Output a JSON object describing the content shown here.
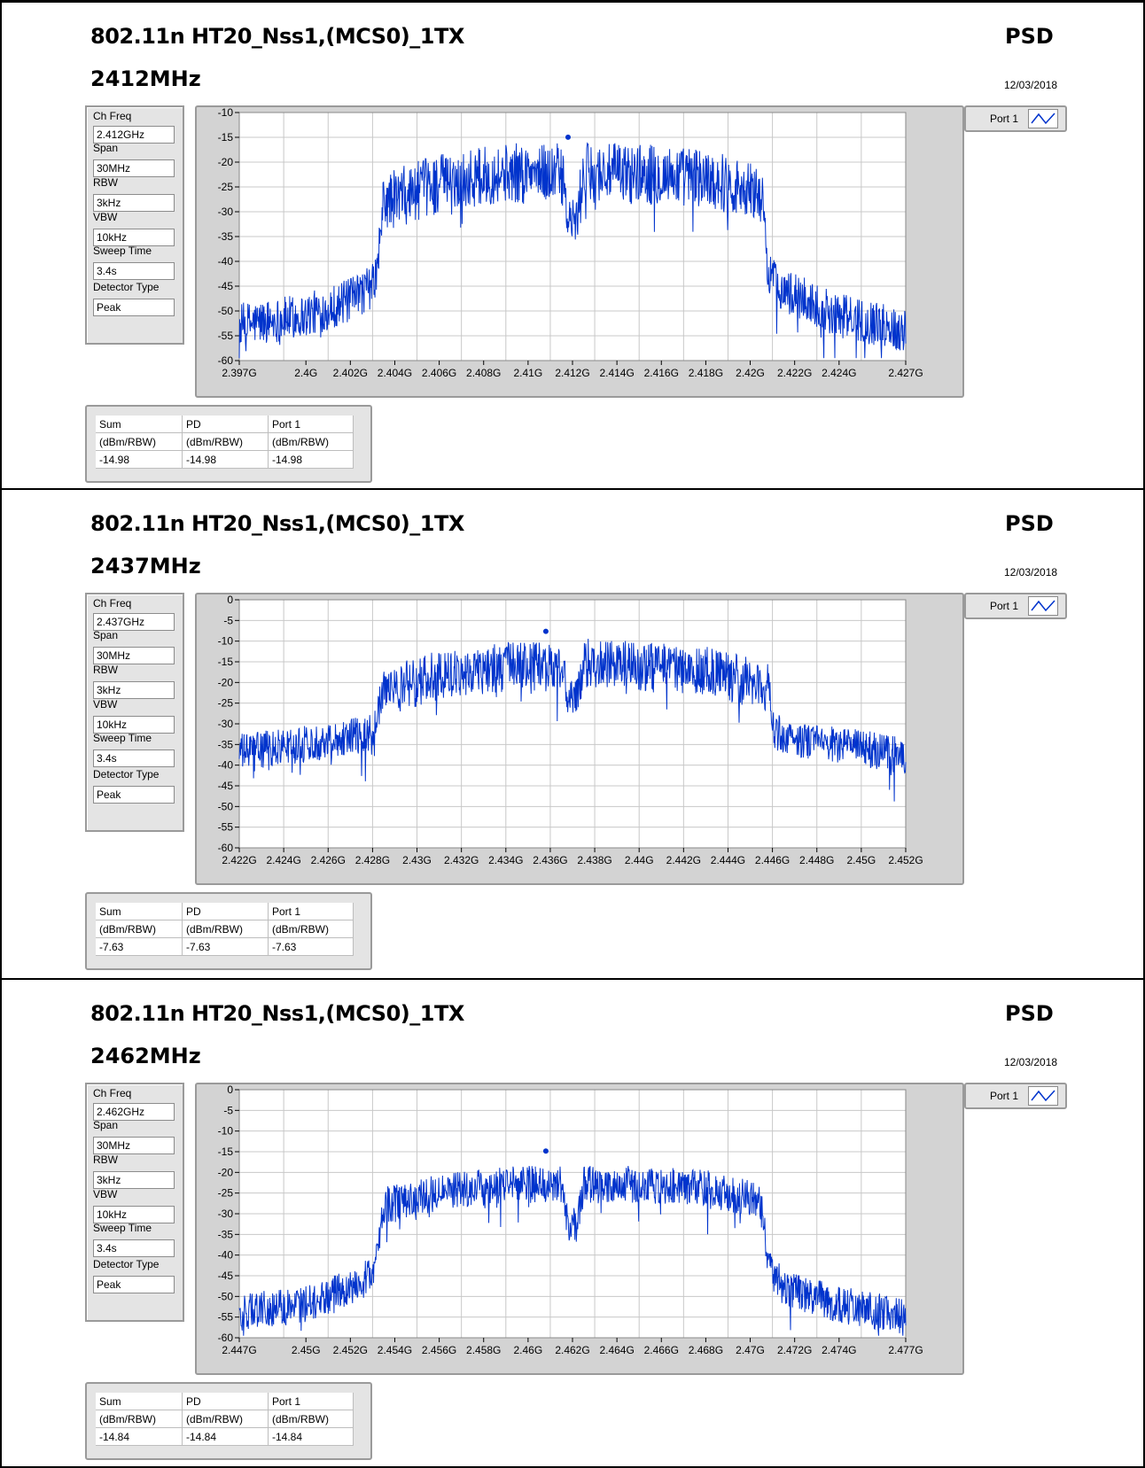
{
  "panels": [
    {
      "title": "802.11n HT20_Nss1,(MCS0)_1TX",
      "psd_label": "PSD",
      "freq_label": "2412MHz",
      "date": "12/03/2018",
      "params": {
        "ch_freq_label": "Ch Freq",
        "ch_freq": "2.412GHz",
        "span_label": "Span",
        "span": "30MHz",
        "rbw_label": "RBW",
        "rbw": "3kHz",
        "vbw_label": "VBW",
        "vbw": "10kHz",
        "sweep_label": "Sweep Time",
        "sweep": "3.4s",
        "detector_label": "Detector Type",
        "detector": "Peak"
      },
      "legend": "Port 1",
      "table": {
        "headers": [
          "Sum",
          "PD",
          "Port 1"
        ],
        "units": [
          "(dBm/RBW)",
          "(dBm/RBW)",
          "(dBm/RBW)"
        ],
        "values": [
          "-14.98",
          "-14.98",
          "-14.98"
        ]
      }
    },
    {
      "title": "802.11n HT20_Nss1,(MCS0)_1TX",
      "psd_label": "PSD",
      "freq_label": "2437MHz",
      "date": "12/03/2018",
      "params": {
        "ch_freq_label": "Ch Freq",
        "ch_freq": "2.437GHz",
        "span_label": "Span",
        "span": "30MHz",
        "rbw_label": "RBW",
        "rbw": "3kHz",
        "vbw_label": "VBW",
        "vbw": "10kHz",
        "sweep_label": "Sweep Time",
        "sweep": "3.4s",
        "detector_label": "Detector Type",
        "detector": "Peak"
      },
      "legend": "Port 1",
      "table": {
        "headers": [
          "Sum",
          "PD",
          "Port 1"
        ],
        "units": [
          "(dBm/RBW)",
          "(dBm/RBW)",
          "(dBm/RBW)"
        ],
        "values": [
          "-7.63",
          "-7.63",
          "-7.63"
        ]
      }
    },
    {
      "title": "802.11n HT20_Nss1,(MCS0)_1TX",
      "psd_label": "PSD",
      "freq_label": "2462MHz",
      "date": "12/03/2018",
      "params": {
        "ch_freq_label": "Ch Freq",
        "ch_freq": "2.462GHz",
        "span_label": "Span",
        "span": "30MHz",
        "rbw_label": "RBW",
        "rbw": "3kHz",
        "vbw_label": "VBW",
        "vbw": "10kHz",
        "sweep_label": "Sweep Time",
        "sweep": "3.4s",
        "detector_label": "Detector Type",
        "detector": "Peak"
      },
      "legend": "Port 1",
      "table": {
        "headers": [
          "Sum",
          "PD",
          "Port 1"
        ],
        "units": [
          "(dBm/RBW)",
          "(dBm/RBW)",
          "(dBm/RBW)"
        ],
        "values": [
          "-14.84",
          "-14.84",
          "-14.84"
        ]
      }
    }
  ],
  "colors": {
    "trace": "#0033cc",
    "grid": "#c8c8c8",
    "plot_bg": "#ffffff",
    "frame_bg": "#d3d3d3"
  },
  "chart_data": [
    {
      "type": "line",
      "series_name": "Port 1",
      "xlim": [
        2.397,
        2.427
      ],
      "ylim": [
        -60,
        -10
      ],
      "x_ticks": [
        2.397,
        2.4,
        2.402,
        2.404,
        2.406,
        2.408,
        2.41,
        2.412,
        2.414,
        2.416,
        2.418,
        2.42,
        2.422,
        2.424,
        2.427
      ],
      "x_tick_labels": [
        "2.397G",
        "2.4G",
        "2.402G",
        "2.404G",
        "2.406G",
        "2.408G",
        "2.41G",
        "2.412G",
        "2.414G",
        "2.416G",
        "2.418G",
        "2.42G",
        "2.422G",
        "2.424G",
        "2.427G"
      ],
      "y_ticks": [
        -10,
        -15,
        -20,
        -25,
        -30,
        -35,
        -40,
        -45,
        -50,
        -55,
        -60
      ],
      "y_tick_labels": [
        "-10",
        "-15",
        "-20",
        "-25",
        "-30",
        "-35",
        "-40",
        "-45",
        "-50",
        "-55",
        "-60"
      ],
      "grid": true,
      "envelope": [
        [
          2.397,
          -52
        ],
        [
          2.4,
          -50
        ],
        [
          2.402,
          -47
        ],
        [
          2.403,
          -44
        ],
        [
          2.4032,
          -41
        ],
        [
          2.4035,
          -27
        ],
        [
          2.406,
          -23
        ],
        [
          2.409,
          -21
        ],
        [
          2.4115,
          -21
        ],
        [
          2.4118,
          -31
        ],
        [
          2.4122,
          -31
        ],
        [
          2.4125,
          -21
        ],
        [
          2.415,
          -21
        ],
        [
          2.418,
          -22
        ],
        [
          2.4205,
          -25
        ],
        [
          2.4208,
          -41
        ],
        [
          2.4215,
          -45
        ],
        [
          2.424,
          -50
        ],
        [
          2.427,
          -53
        ]
      ],
      "peak": {
        "x": 2.4118,
        "y": -14.98
      }
    },
    {
      "type": "line",
      "series_name": "Port 1",
      "xlim": [
        2.422,
        2.452
      ],
      "ylim": [
        -60,
        0
      ],
      "x_ticks": [
        2.422,
        2.424,
        2.426,
        2.428,
        2.43,
        2.432,
        2.434,
        2.436,
        2.438,
        2.44,
        2.442,
        2.444,
        2.446,
        2.448,
        2.45,
        2.452
      ],
      "x_tick_labels": [
        "2.422G",
        "2.424G",
        "2.426G",
        "2.428G",
        "2.43G",
        "2.432G",
        "2.434G",
        "2.436G",
        "2.438G",
        "2.44G",
        "2.442G",
        "2.444G",
        "2.446G",
        "2.448G",
        "2.45G",
        "2.452G"
      ],
      "y_ticks": [
        0,
        -5,
        -10,
        -15,
        -20,
        -25,
        -30,
        -35,
        -40,
        -45,
        -50,
        -55,
        -60
      ],
      "y_tick_labels": [
        "0",
        "-5",
        "-10",
        "-15",
        "-20",
        "-25",
        "-30",
        "-35",
        "-40",
        "-45",
        "-50",
        "-55",
        "-60"
      ],
      "grid": true,
      "envelope": [
        [
          2.422,
          -36
        ],
        [
          2.425,
          -34
        ],
        [
          2.428,
          -31
        ],
        [
          2.4282,
          -27
        ],
        [
          2.4285,
          -21
        ],
        [
          2.431,
          -17
        ],
        [
          2.434,
          -15
        ],
        [
          2.4365,
          -15
        ],
        [
          2.4368,
          -23
        ],
        [
          2.4372,
          -23
        ],
        [
          2.4375,
          -14
        ],
        [
          2.44,
          -15
        ],
        [
          2.443,
          -16
        ],
        [
          2.4458,
          -20
        ],
        [
          2.4461,
          -31
        ],
        [
          2.447,
          -33
        ],
        [
          2.45,
          -35
        ],
        [
          2.452,
          -37
        ]
      ],
      "peak": {
        "x": 2.4358,
        "y": -7.63
      }
    },
    {
      "type": "line",
      "series_name": "Port 1",
      "xlim": [
        2.447,
        2.477
      ],
      "ylim": [
        -60,
        0
      ],
      "x_ticks": [
        2.447,
        2.45,
        2.452,
        2.454,
        2.456,
        2.458,
        2.46,
        2.462,
        2.464,
        2.466,
        2.468,
        2.47,
        2.472,
        2.474,
        2.477
      ],
      "x_tick_labels": [
        "2.447G",
        "2.45G",
        "2.452G",
        "2.454G",
        "2.456G",
        "2.458G",
        "2.46G",
        "2.462G",
        "2.464G",
        "2.466G",
        "2.468G",
        "2.47G",
        "2.472G",
        "2.474G",
        "2.477G"
      ],
      "y_ticks": [
        0,
        -5,
        -10,
        -15,
        -20,
        -25,
        -30,
        -35,
        -40,
        -45,
        -50,
        -55,
        -60
      ],
      "y_tick_labels": [
        "0",
        "-5",
        "-10",
        "-15",
        "-20",
        "-25",
        "-30",
        "-35",
        "-40",
        "-45",
        "-50",
        "-55",
        "-60"
      ],
      "grid": true,
      "envelope": [
        [
          2.447,
          -53
        ],
        [
          2.45,
          -51
        ],
        [
          2.452,
          -47
        ],
        [
          2.453,
          -44
        ],
        [
          2.4532,
          -40
        ],
        [
          2.4535,
          -27
        ],
        [
          2.456,
          -24
        ],
        [
          2.459,
          -22
        ],
        [
          2.4615,
          -22
        ],
        [
          2.4618,
          -32
        ],
        [
          2.4622,
          -32
        ],
        [
          2.4625,
          -22
        ],
        [
          2.465,
          -22
        ],
        [
          2.468,
          -23
        ],
        [
          2.4705,
          -26
        ],
        [
          2.4708,
          -42
        ],
        [
          2.4715,
          -47
        ],
        [
          2.474,
          -51
        ],
        [
          2.477,
          -54
        ]
      ],
      "peak": {
        "x": 2.4608,
        "y": -14.84
      }
    }
  ]
}
